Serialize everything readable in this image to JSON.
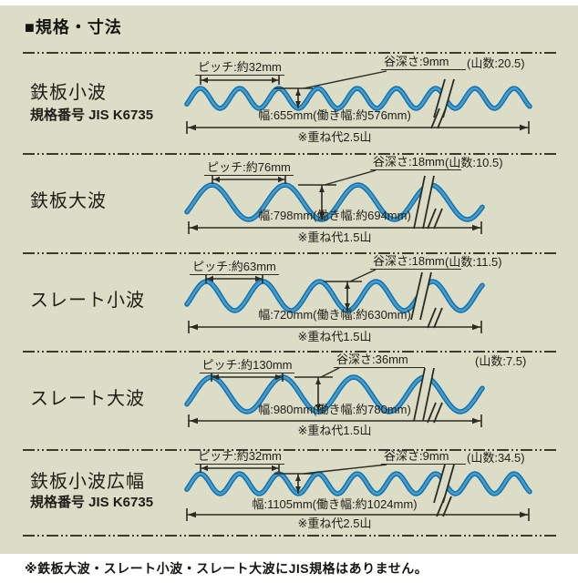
{
  "title": "■規格・寸法",
  "footnote": "※鉄板大波・スレート小波・スレート大波にJIS規格はありません。",
  "colors": {
    "panel_bg": "#dcddc7",
    "line": "#2b2b24",
    "wave_core": "#3aa0d6",
    "wave_edge": "#1b6ca3"
  },
  "rows": [
    {
      "name": "鉄板小波",
      "standard": "規格番号 JIS K6735",
      "pitch": "ピッチ:約32mm",
      "valley_depth": "谷深さ:9mm",
      "crest_count": "(山数:20.5)",
      "width": "幅:655mm(働き幅:約576mm)",
      "overlap": "※重ね代2.5山"
    },
    {
      "name": "鉄板大波",
      "standard": "",
      "pitch": "ピッチ:約76mm",
      "valley_depth": "谷深さ:18mm",
      "crest_count": "(山数:10.5)",
      "width": "幅:798mm(働き幅:約694mm)",
      "overlap": "※重ね代1.5山"
    },
    {
      "name": "スレート小波",
      "standard": "",
      "pitch": "ピッチ:約63mm",
      "valley_depth": "谷深さ:18mm",
      "crest_count": "(山数:11.5)",
      "width": "幅:720mm(働き幅:約630mm)",
      "overlap": "※重ね代1.5山"
    },
    {
      "name": "スレート大波",
      "standard": "",
      "pitch": "ピッチ:約130mm",
      "valley_depth": "谷深さ:36mm",
      "crest_count": "(山数:7.5)",
      "width": "幅:980mm(働き幅:約780mm)",
      "overlap": "※重ね代1.5山"
    },
    {
      "name": "鉄板小波広幅",
      "standard": "規格番号 JIS K6735",
      "pitch": "ピッチ:約32mm",
      "valley_depth": "谷深さ:9mm",
      "crest_count": "(山数:34.5)",
      "width": "幅:1105mm(働き幅:約1024mm)",
      "overlap": "※重ね代2.5山"
    }
  ]
}
